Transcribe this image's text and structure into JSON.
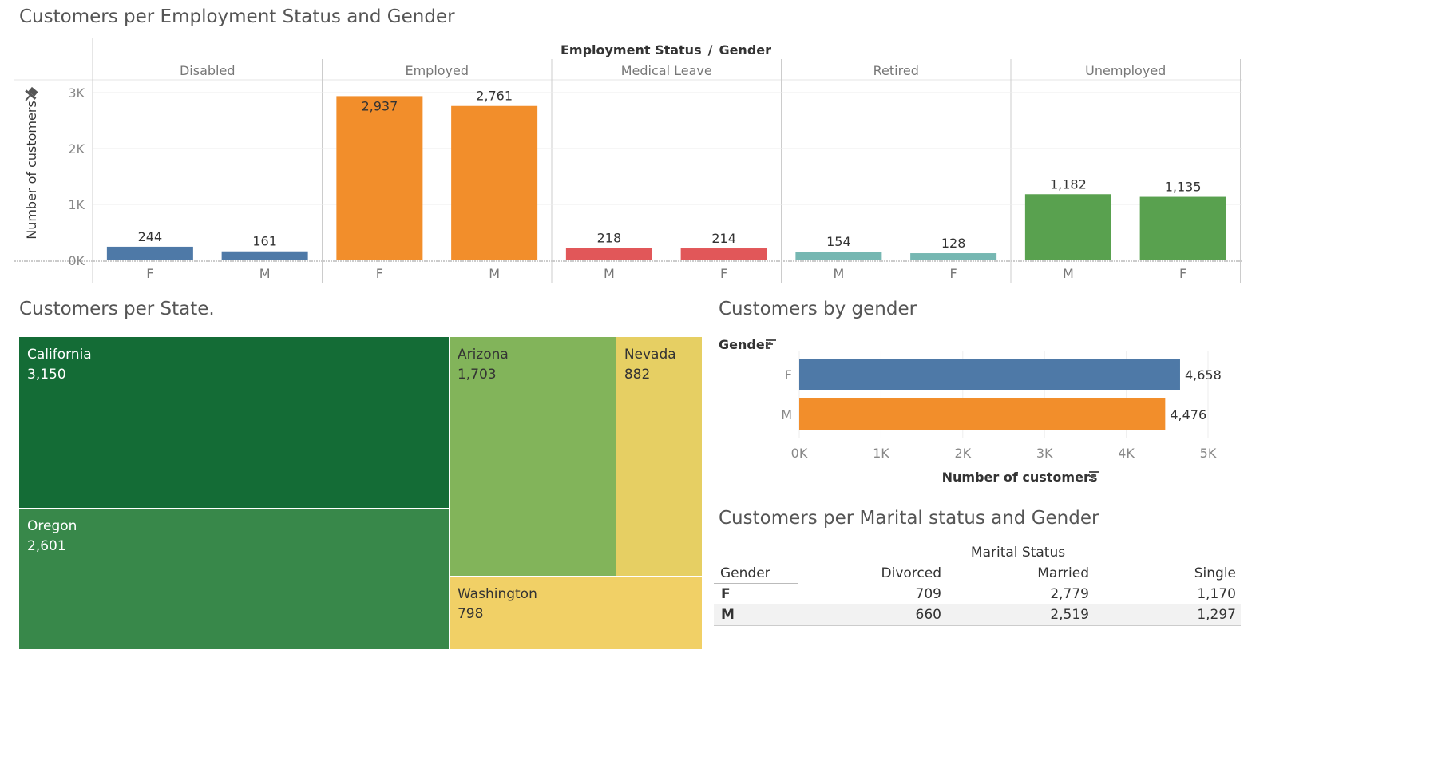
{
  "employment_chart": {
    "title": "Customers per Employment Status and Gender",
    "header_left": "Employment Status",
    "header_sep": "/",
    "header_right": "Gender",
    "ylabel": "Number of customers",
    "yticks": [
      "0K",
      "1K",
      "2K",
      "3K"
    ]
  },
  "state_treemap": {
    "title": "Customers per State."
  },
  "gender_chart": {
    "title": "Customers by gender",
    "row_header": "Gender",
    "xlabel": "Number of customers",
    "xticks": [
      "0K",
      "1K",
      "2K",
      "3K",
      "4K",
      "5K"
    ]
  },
  "marital_table": {
    "title": "Customers per Marital status and Gender",
    "col_group": "Marital Status",
    "row_header": "Gender",
    "columns": [
      "Divorced",
      "Married",
      "Single"
    ],
    "rows": [
      {
        "label": "F",
        "values": [
          "709",
          "2,779",
          "1,170"
        ]
      },
      {
        "label": "M",
        "values": [
          "660",
          "2,519",
          "1,297"
        ]
      }
    ]
  },
  "chart_data": [
    {
      "type": "bar",
      "title": "Customers per Employment Status and Gender",
      "xlabel": "Employment Status / Gender",
      "ylabel": "Number of customers",
      "ylim": [
        0,
        3200
      ],
      "yticks": [
        0,
        1000,
        2000,
        3000
      ],
      "groups": [
        {
          "name": "Disabled",
          "color": "#4e79a7",
          "bars": [
            {
              "gender": "F",
              "value": 244,
              "label": "244"
            },
            {
              "gender": "M",
              "value": 161,
              "label": "161"
            }
          ]
        },
        {
          "name": "Employed",
          "color": "#f28e2b",
          "bars": [
            {
              "gender": "F",
              "value": 2937,
              "label": "2,937"
            },
            {
              "gender": "M",
              "value": 2761,
              "label": "2,761"
            }
          ]
        },
        {
          "name": "Medical Leave",
          "color": "#e15759",
          "bars": [
            {
              "gender": "M",
              "value": 218,
              "label": "218"
            },
            {
              "gender": "F",
              "value": 214,
              "label": "214"
            }
          ]
        },
        {
          "name": "Retired",
          "color": "#76b7b2",
          "bars": [
            {
              "gender": "M",
              "value": 154,
              "label": "154"
            },
            {
              "gender": "F",
              "value": 128,
              "label": "128"
            }
          ]
        },
        {
          "name": "Unemployed",
          "color": "#59a14f",
          "bars": [
            {
              "gender": "M",
              "value": 1182,
              "label": "1,182"
            },
            {
              "gender": "F",
              "value": 1135,
              "label": "1,135"
            }
          ]
        }
      ],
      "grid": true
    },
    {
      "type": "treemap",
      "title": "Customers per State.",
      "items": [
        {
          "name": "California",
          "value": 3150,
          "label": "3,150",
          "color": "#146c36"
        },
        {
          "name": "Oregon",
          "value": 2601,
          "label": "2,601",
          "color": "#38884a"
        },
        {
          "name": "Arizona",
          "value": 1703,
          "label": "1,703",
          "color": "#82b45a"
        },
        {
          "name": "Nevada",
          "value": 882,
          "label": "882",
          "color": "#e6cf63"
        },
        {
          "name": "Washington",
          "value": 798,
          "label": "798",
          "color": "#f1d066"
        }
      ]
    },
    {
      "type": "bar",
      "orientation": "horizontal",
      "title": "Customers by gender",
      "xlabel": "Number of customers",
      "ylabel": "Gender",
      "categories": [
        "F",
        "M"
      ],
      "values": [
        4658,
        4476
      ],
      "labels": [
        "4,658",
        "4,476"
      ],
      "colors": [
        "#4e79a7",
        "#f28e2b"
      ],
      "xlim": [
        0,
        5000
      ],
      "xticks": [
        0,
        1000,
        2000,
        3000,
        4000,
        5000
      ],
      "grid": true
    },
    {
      "type": "table",
      "title": "Customers per Marital status and Gender",
      "columns": [
        "Gender",
        "Divorced",
        "Married",
        "Single"
      ],
      "rows": [
        [
          "F",
          709,
          2779,
          1170
        ],
        [
          "M",
          660,
          2519,
          1297
        ]
      ]
    }
  ]
}
